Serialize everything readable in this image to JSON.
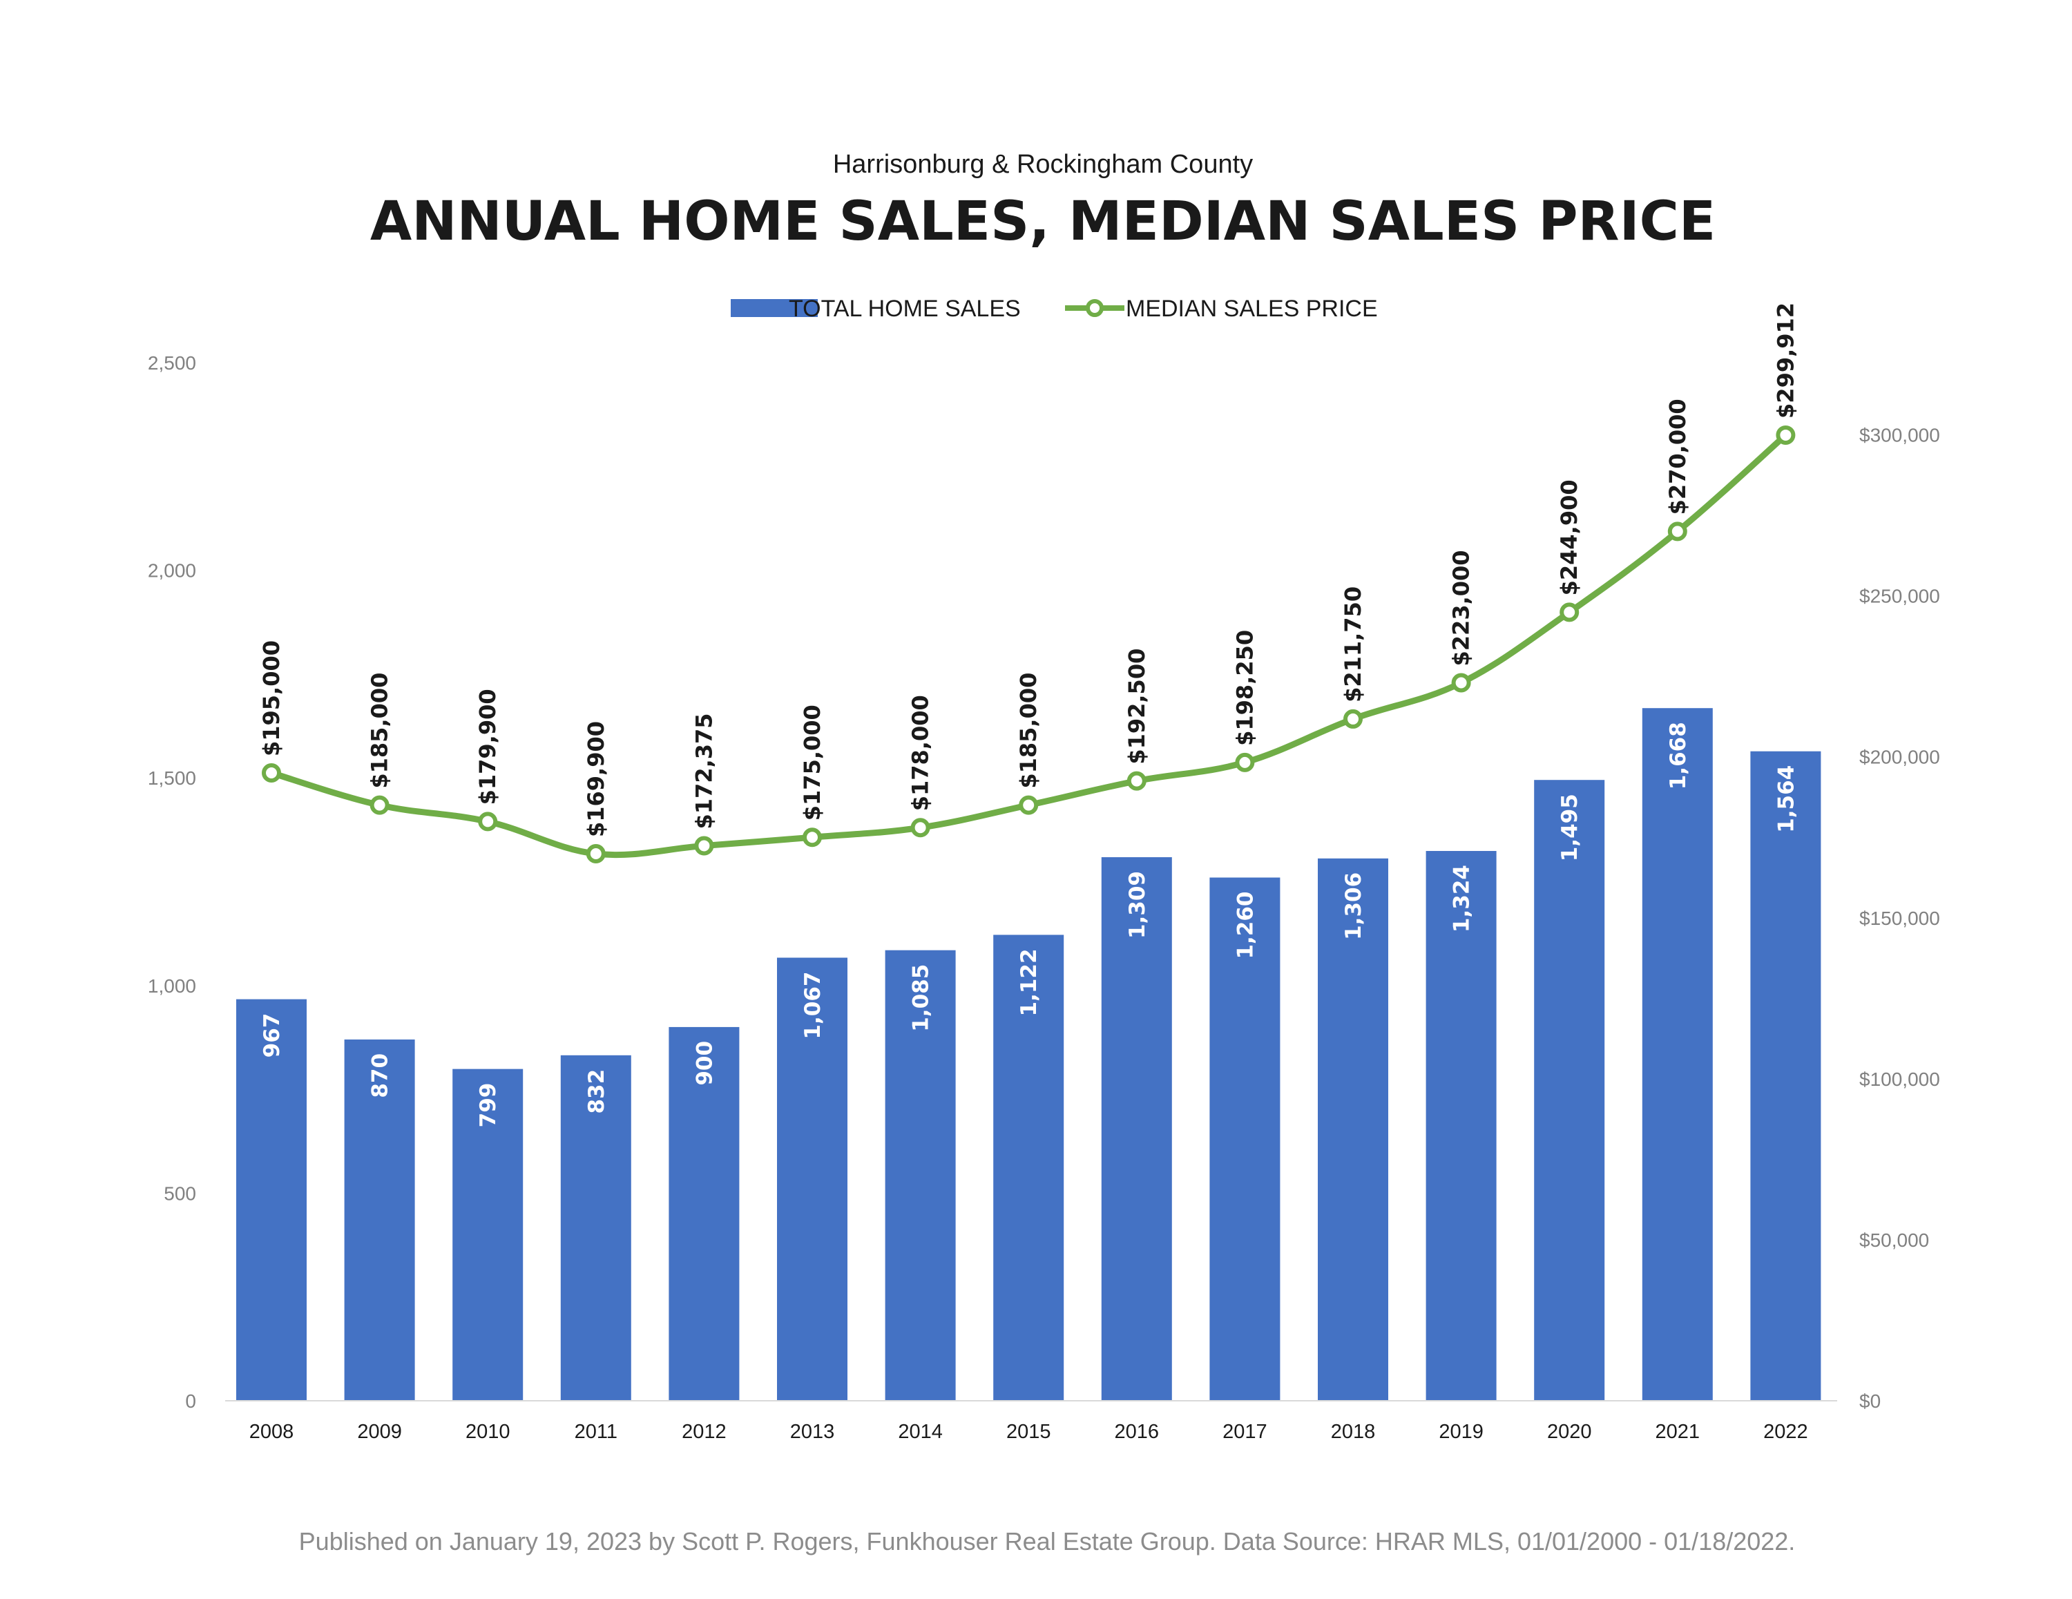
{
  "subtitle": "Harrisonburg & Rockingham County",
  "title": "ANNUAL HOME SALES, MEDIAN SALES PRICE",
  "footer": "Published on January 19, 2023 by Scott P. Rogers, Funkhouser Real Estate Group. Data Source: HRAR MLS, 01/01/2000 - 01/18/2022.",
  "colors": {
    "bar": "#4472c4",
    "line": "#70ad47",
    "axis": "#d9d9d9"
  },
  "chart_data": {
    "type": "bar+line",
    "categories": [
      "2008",
      "2009",
      "2010",
      "2011",
      "2012",
      "2013",
      "2014",
      "2015",
      "2016",
      "2017",
      "2018",
      "2019",
      "2020",
      "2021",
      "2022"
    ],
    "series": [
      {
        "name": "TOTAL HOME SALES",
        "type": "bar",
        "axis": "left",
        "values": [
          967,
          870,
          799,
          832,
          900,
          1067,
          1085,
          1122,
          1309,
          1260,
          1306,
          1324,
          1495,
          1668,
          1564
        ],
        "labels": [
          "967",
          "870",
          "799",
          "832",
          "900",
          "1,067",
          "1,085",
          "1,122",
          "1,309",
          "1,260",
          "1,306",
          "1,324",
          "1,495",
          "1,668",
          "1,564"
        ]
      },
      {
        "name": "MEDIAN SALES PRICE",
        "type": "line",
        "axis": "right",
        "values": [
          195000,
          185000,
          179900,
          169900,
          172375,
          175000,
          178000,
          185000,
          192500,
          198250,
          211750,
          223000,
          244900,
          270000,
          299912
        ],
        "labels": [
          "$195,000",
          "$185,000",
          "$179,900",
          "$169,900",
          "$172,375",
          "$175,000",
          "$178,000",
          "$185,000",
          "$192,500",
          "$198,250",
          "$211,750",
          "$223,000",
          "$244,900",
          "$270,000",
          "$299,912"
        ]
      }
    ],
    "left_axis": {
      "range": [
        0,
        2500
      ],
      "ticks": [
        0,
        500,
        1000,
        1500,
        2000,
        2500
      ],
      "tick_labels": [
        "0",
        "500",
        "1,000",
        "1,500",
        "2,000",
        "2,500"
      ]
    },
    "right_axis": {
      "range": [
        0,
        325000
      ],
      "ticks": [
        0,
        50000,
        100000,
        150000,
        200000,
        250000,
        300000
      ],
      "tick_labels": [
        "$0",
        "$50,000",
        "$100,000",
        "$150,000",
        "$200,000",
        "$250,000",
        "$300,000"
      ]
    },
    "legend_position": "top-center",
    "grid": false
  }
}
